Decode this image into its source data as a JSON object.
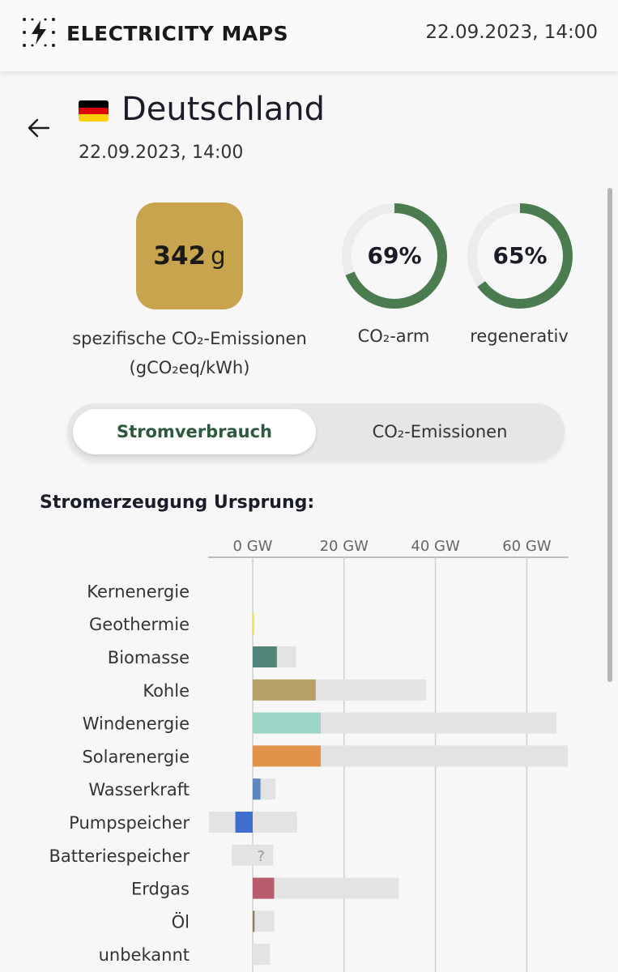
{
  "header": {
    "app_title": "ELECTRICITY MAPS",
    "datetime": "22.09.2023, 14:00",
    "logo_icon": "lightning-dots-icon"
  },
  "zone": {
    "name": "Deutschland",
    "datetime": "22.09.2023, 14:00",
    "flag_colors": [
      "#000000",
      "#dd0000",
      "#ffce00"
    ]
  },
  "stats": {
    "carbon_intensity_value": "342",
    "carbon_intensity_unit": "g",
    "carbon_intensity_color": "#c8a44f",
    "carbon_intensity_label_1": "spezifische CO₂-Emissionen",
    "carbon_intensity_label_2": "(gCO₂eq/kWh)",
    "low_carbon_pct": 69,
    "low_carbon_text": "69%",
    "low_carbon_label": "CO₂-arm",
    "renewable_pct": 65,
    "renewable_text": "65%",
    "renewable_label": "regenerativ",
    "ring_color": "#4a7c50",
    "ring_track_color": "#ebecee"
  },
  "toggle": {
    "active_label": "Stromverbrauch",
    "inactive_label": "CO₂-Emissionen"
  },
  "section_title": "Stromerzeugung Ursprung:",
  "chart_data": {
    "type": "bar",
    "title": "Stromerzeugung Ursprung:",
    "unit": "GW",
    "xlim": [
      -10,
      70
    ],
    "ticks": [
      0,
      20,
      40,
      60
    ],
    "tick_labels": [
      "0 GW",
      "20 GW",
      "40 GW",
      "60 GW"
    ],
    "categories": [
      "Kernenergie",
      "Geothermie",
      "Biomasse",
      "Kohle",
      "Windenergie",
      "Solarenergie",
      "Wasserkraft",
      "Pumpspeicher",
      "Batteriespeicher",
      "Erdgas",
      "Öl",
      "unbekannt"
    ],
    "series": [
      {
        "name": "production",
        "values": [
          0,
          0.1,
          5.3,
          13.8,
          14.9,
          14.9,
          1.7,
          -3.8,
          0,
          4.7,
          0.4,
          0
        ]
      },
      {
        "name": "capacity_max",
        "values": [
          0,
          0.1,
          9.5,
          38,
          66.5,
          69,
          5,
          9.7,
          4.5,
          32,
          4.7,
          3.8
        ]
      },
      {
        "name": "capacity_min",
        "values": [
          0,
          0,
          0,
          0,
          0,
          0,
          0,
          -9.6,
          -4.6,
          0,
          0,
          0
        ]
      }
    ],
    "colors": [
      "#888888",
      "#f5e35b",
      "#53857a",
      "#b6a067",
      "#9cd4c5",
      "#e1934a",
      "#5f86be",
      "#3e6fcf",
      "#aaaaaa",
      "#b85c6e",
      "#8a7d62",
      "#cccccc"
    ],
    "unknown_marker": "?",
    "unknown_index": 8
  }
}
